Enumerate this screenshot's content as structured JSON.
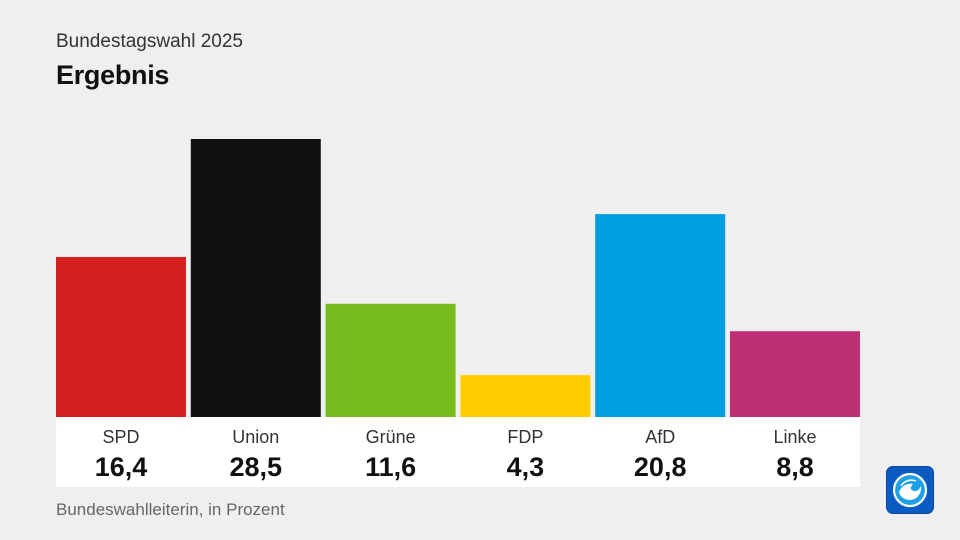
{
  "header": {
    "subtitle": "Bundestagswahl 2025",
    "title": "Ergebnis"
  },
  "footer": {
    "source": "Bundeswahlleiterin, in Prozent"
  },
  "logo": {
    "icon": "tagesschau-globe-icon"
  },
  "chart_data": {
    "type": "bar",
    "title": "Ergebnis",
    "subtitle": "Bundestagswahl 2025",
    "categories": [
      "SPD",
      "Union",
      "Grüne",
      "FDP",
      "AfD",
      "Linke"
    ],
    "values": [
      16.4,
      28.5,
      11.6,
      4.3,
      20.8,
      8.8
    ],
    "value_labels": [
      "16,4",
      "28,5",
      "11,6",
      "4,3",
      "20,8",
      "8,8"
    ],
    "colors": [
      "#d42020",
      "#111111",
      "#76bc1c",
      "#ffcc00",
      "#009ee0",
      "#be3075"
    ],
    "unit": "Prozent",
    "ylim": [
      0,
      28.5
    ],
    "grid": false,
    "legend": "none"
  }
}
